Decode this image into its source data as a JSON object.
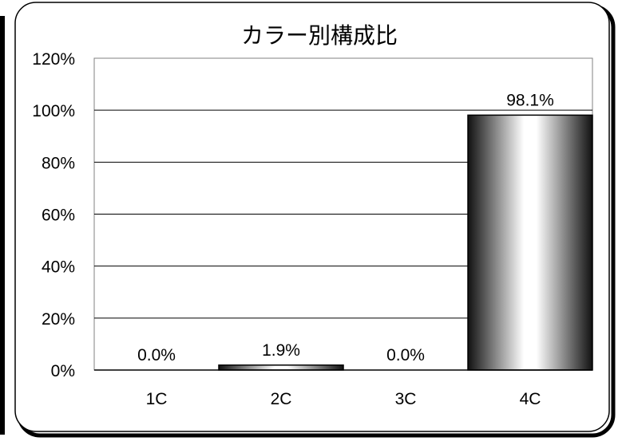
{
  "chart_data": {
    "type": "bar",
    "title": "カラー別構成比",
    "categories": [
      "1C",
      "2C",
      "3C",
      "4C"
    ],
    "values": [
      0.0,
      1.9,
      0.0,
      98.1
    ],
    "data_labels": [
      "0.0%",
      "1.9%",
      "0.0%",
      "98.1%"
    ],
    "ylim": [
      0,
      120
    ],
    "yticks": [
      0,
      20,
      40,
      60,
      80,
      100,
      120
    ],
    "ytick_labels": [
      "0%",
      "20%",
      "40%",
      "60%",
      "80%",
      "100%",
      "120%"
    ],
    "xlabel": "",
    "ylabel": "",
    "grid": true,
    "legend": "none",
    "colors": {
      "background": "#ffffff",
      "border": "#000000",
      "grid": "#000000",
      "bar_dark": "#1a1a1a",
      "bar_light": "#ffffff"
    }
  }
}
